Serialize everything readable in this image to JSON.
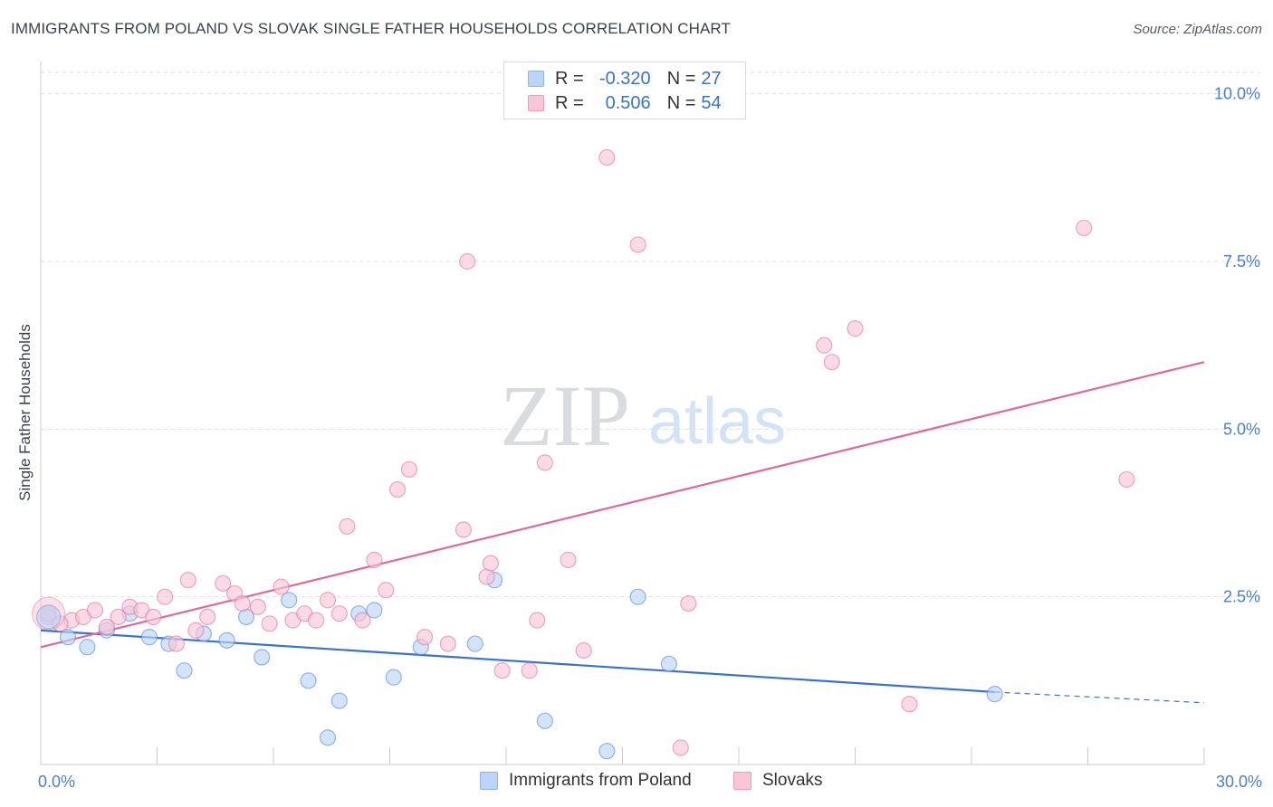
{
  "header": {
    "title": "IMMIGRANTS FROM POLAND VS SLOVAK SINGLE FATHER HOUSEHOLDS CORRELATION CHART",
    "source": "Source: ZipAtlas.com"
  },
  "watermark": {
    "zip": "ZIP",
    "atlas": "atlas"
  },
  "legend_top": {
    "rows": [
      {
        "r_label": "R =",
        "r_value": "-0.320",
        "n_label": "N =",
        "n_value": "27",
        "color": "#bcd4f5"
      },
      {
        "r_label": "R =",
        "r_value": "0.506",
        "n_label": "N =",
        "n_value": "54",
        "color": "#f8c6d6"
      }
    ]
  },
  "legend_bottom": {
    "items": [
      {
        "label": "Immigrants from Poland",
        "color": "#bcd4f5"
      },
      {
        "label": "Slovaks",
        "color": "#f8c6d6"
      }
    ]
  },
  "chart_data": {
    "type": "scatter",
    "title": "IMMIGRANTS FROM POLAND VS SLOVAK SINGLE FATHER HOUSEHOLDS CORRELATION CHART",
    "xlabel": "",
    "ylabel": "Single Father Households",
    "xlim": [
      0,
      30
    ],
    "ylim": [
      0,
      10.4
    ],
    "x_tick_labels": [
      {
        "value": 0,
        "label": "0.0%"
      },
      {
        "value": 30,
        "label": "30.0%"
      }
    ],
    "y_tick_labels": [
      {
        "value": 2.5,
        "label": "2.5%"
      },
      {
        "value": 5.0,
        "label": "5.0%"
      },
      {
        "value": 7.5,
        "label": "7.5%"
      },
      {
        "value": 10.0,
        "label": "10.0%"
      }
    ],
    "x_minor_ticks": [
      0,
      3,
      6,
      9,
      12,
      15,
      18,
      21,
      24,
      27,
      30
    ],
    "grid": true,
    "legend_position": "top-center",
    "series": [
      {
        "name": "Immigrants from Poland",
        "color": "#4a7fd1",
        "fill": "#bcd4f5",
        "points": [
          [
            0.2,
            2.2
          ],
          [
            0.7,
            1.9
          ],
          [
            1.2,
            1.75
          ],
          [
            1.7,
            2.0
          ],
          [
            2.3,
            2.25
          ],
          [
            2.8,
            1.9
          ],
          [
            3.3,
            1.8
          ],
          [
            3.7,
            1.4
          ],
          [
            4.2,
            1.95
          ],
          [
            4.8,
            1.85
          ],
          [
            5.3,
            2.2
          ],
          [
            5.7,
            1.6
          ],
          [
            6.4,
            2.45
          ],
          [
            6.9,
            1.25
          ],
          [
            7.4,
            0.4
          ],
          [
            7.7,
            0.95
          ],
          [
            8.2,
            2.25
          ],
          [
            8.6,
            2.3
          ],
          [
            9.1,
            1.3
          ],
          [
            9.8,
            1.75
          ],
          [
            11.2,
            1.8
          ],
          [
            11.7,
            2.75
          ],
          [
            13.0,
            0.65
          ],
          [
            14.6,
            0.2
          ],
          [
            15.4,
            2.5
          ],
          [
            16.2,
            1.5
          ],
          [
            24.6,
            1.05
          ]
        ],
        "trend": {
          "x0": 0,
          "y0": 2.0,
          "x1": 24.6,
          "y1": 1.08,
          "dash_x1": 30,
          "dash_y1": 0.92
        }
      },
      {
        "name": "Slovaks",
        "color": "#e0689a",
        "fill": "#f8c6d6",
        "points": [
          [
            0.2,
            2.25
          ],
          [
            0.8,
            2.15
          ],
          [
            1.1,
            2.2
          ],
          [
            1.4,
            2.3
          ],
          [
            1.7,
            2.05
          ],
          [
            2.0,
            2.2
          ],
          [
            2.3,
            2.35
          ],
          [
            2.6,
            2.3
          ],
          [
            2.9,
            2.2
          ],
          [
            3.2,
            2.5
          ],
          [
            3.5,
            1.8
          ],
          [
            3.8,
            2.75
          ],
          [
            4.0,
            2.0
          ],
          [
            4.3,
            2.2
          ],
          [
            4.7,
            2.7
          ],
          [
            5.0,
            2.55
          ],
          [
            5.2,
            2.4
          ],
          [
            5.6,
            2.35
          ],
          [
            5.9,
            2.1
          ],
          [
            6.2,
            2.65
          ],
          [
            6.5,
            2.15
          ],
          [
            6.8,
            2.25
          ],
          [
            7.1,
            2.15
          ],
          [
            7.4,
            2.45
          ],
          [
            7.7,
            2.25
          ],
          [
            7.9,
            3.55
          ],
          [
            8.3,
            2.15
          ],
          [
            8.6,
            3.05
          ],
          [
            8.9,
            2.6
          ],
          [
            9.2,
            4.1
          ],
          [
            9.5,
            4.4
          ],
          [
            9.9,
            1.9
          ],
          [
            10.5,
            1.8
          ],
          [
            10.9,
            3.5
          ],
          [
            11.0,
            7.5
          ],
          [
            11.5,
            2.8
          ],
          [
            11.6,
            3.0
          ],
          [
            11.9,
            1.4
          ],
          [
            12.6,
            1.4
          ],
          [
            12.8,
            2.15
          ],
          [
            13.0,
            4.5
          ],
          [
            13.6,
            3.05
          ],
          [
            14.0,
            1.7
          ],
          [
            14.6,
            9.05
          ],
          [
            15.4,
            7.75
          ],
          [
            16.5,
            0.25
          ],
          [
            16.7,
            2.4
          ],
          [
            20.2,
            6.25
          ],
          [
            20.4,
            6.0
          ],
          [
            21.0,
            6.5
          ],
          [
            22.4,
            0.9
          ],
          [
            26.9,
            8.0
          ],
          [
            28.0,
            4.25
          ],
          [
            0.5,
            2.1
          ]
        ],
        "trend": {
          "x0": 0,
          "y0": 1.75,
          "x1": 30,
          "y1": 6.0
        }
      }
    ]
  }
}
